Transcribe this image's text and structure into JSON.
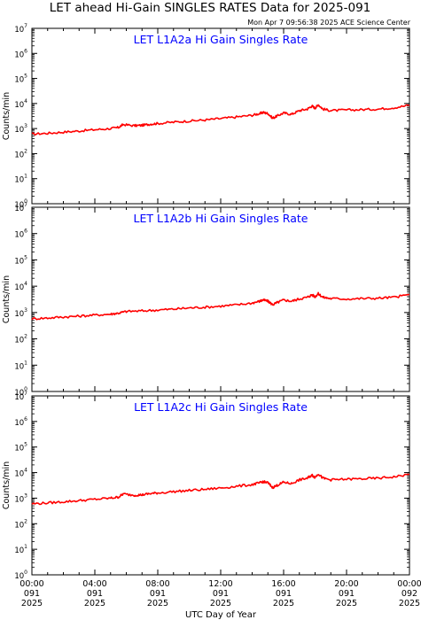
{
  "header": {
    "title": "LET ahead Hi-Gain SINGLES RATES Data for 2025-091",
    "timestamp": "Mon Apr  7 09:56:38 2025 ACE Science Center"
  },
  "ylabel": "Counts/min",
  "xlabel": "UTC Day of Year",
  "colors": {
    "series": "#ff0000",
    "panel_title": "#0000ff",
    "axes": "#000000"
  },
  "chart_data": [
    {
      "type": "line",
      "title": "LET L1A2a Hi Gain Singles Rate",
      "ylabel": "Counts/min",
      "yscale": "log",
      "ylim": [
        1,
        10000000
      ],
      "xlim": [
        0,
        24
      ],
      "series": [
        {
          "x": [
            0,
            1,
            2,
            3,
            4,
            5,
            5.5,
            5.8,
            6.5,
            7,
            7.5,
            8,
            9,
            10,
            11,
            12,
            13,
            14,
            14.5,
            14.7,
            15,
            15.3,
            15.6,
            16,
            16.5,
            17,
            17.5,
            17.8,
            18,
            18.2,
            18.5,
            19,
            20,
            21,
            22,
            23,
            24
          ],
          "values": [
            600,
            650,
            720,
            800,
            900,
            1000,
            1100,
            1450,
            1300,
            1350,
            1500,
            1600,
            1800,
            2000,
            2200,
            2500,
            2900,
            3400,
            4000,
            4400,
            4000,
            2600,
            3200,
            4200,
            3700,
            5200,
            6000,
            8000,
            6500,
            9000,
            6000,
            5200,
            5500,
            5700,
            6000,
            6800,
            8500
          ]
        }
      ]
    },
    {
      "type": "line",
      "title": "LET L1A2b Hi Gain Singles Rate",
      "ylabel": "Counts/min",
      "yscale": "log",
      "ylim": [
        1,
        10000000
      ],
      "xlim": [
        0,
        24
      ],
      "series": [
        {
          "x": [
            0,
            1,
            2,
            3,
            4,
            5,
            5.5,
            6,
            7,
            8,
            9,
            10,
            11,
            12,
            13,
            14,
            14.5,
            14.7,
            15,
            15.3,
            15.6,
            16,
            16.5,
            17,
            17.5,
            17.8,
            18,
            18.2,
            18.5,
            19,
            20,
            21,
            22,
            23,
            24
          ],
          "values": [
            580,
            620,
            680,
            730,
            800,
            870,
            950,
            1100,
            1150,
            1250,
            1350,
            1500,
            1600,
            1750,
            1950,
            2300,
            2700,
            3000,
            2700,
            2000,
            2400,
            3000,
            2700,
            3300,
            3800,
            4700,
            4000,
            5200,
            3800,
            3400,
            3300,
            3400,
            3500,
            3800,
            4800
          ]
        }
      ]
    },
    {
      "type": "line",
      "title": "LET L1A2c Hi Gain Singles Rate",
      "ylabel": "Counts/min",
      "yscale": "log",
      "ylim": [
        1,
        10000000
      ],
      "xlim": [
        0,
        24
      ],
      "series": [
        {
          "x": [
            0,
            1,
            2,
            3,
            4,
            5,
            5.5,
            5.8,
            6.5,
            7,
            7.5,
            8,
            9,
            10,
            11,
            12,
            13,
            14,
            14.5,
            14.7,
            15,
            15.3,
            15.6,
            16,
            16.5,
            17,
            17.5,
            17.8,
            18,
            18.2,
            18.5,
            19,
            20,
            21,
            22,
            23,
            24
          ],
          "values": [
            600,
            650,
            720,
            800,
            900,
            1000,
            1100,
            1450,
            1300,
            1350,
            1500,
            1600,
            1800,
            2000,
            2200,
            2500,
            2900,
            3400,
            4000,
            4400,
            4000,
            2600,
            3200,
            4200,
            3700,
            5200,
            6000,
            8000,
            6500,
            9000,
            6000,
            5200,
            5500,
            5700,
            6000,
            6800,
            8500
          ]
        }
      ]
    }
  ],
  "yticks": [
    {
      "exp": "0",
      "value": 1
    },
    {
      "exp": "1",
      "value": 10
    },
    {
      "exp": "2",
      "value": 100
    },
    {
      "exp": "3",
      "value": 1000
    },
    {
      "exp": "4",
      "value": 10000
    },
    {
      "exp": "5",
      "value": 100000
    },
    {
      "exp": "6",
      "value": 1000000
    },
    {
      "exp": "7",
      "value": 10000000
    }
  ],
  "ytick_base": "10",
  "xticks": [
    {
      "hour": 0,
      "time": "00:00",
      "day": "091",
      "year": "2025"
    },
    {
      "hour": 4,
      "time": "04:00",
      "day": "091",
      "year": "2025"
    },
    {
      "hour": 8,
      "time": "08:00",
      "day": "091",
      "year": "2025"
    },
    {
      "hour": 12,
      "time": "12:00",
      "day": "091",
      "year": "2025"
    },
    {
      "hour": 16,
      "time": "16:00",
      "day": "091",
      "year": "2025"
    },
    {
      "hour": 20,
      "time": "20:00",
      "day": "091",
      "year": "2025"
    },
    {
      "hour": 24,
      "time": "00:00",
      "day": "092",
      "year": "2025"
    }
  ]
}
